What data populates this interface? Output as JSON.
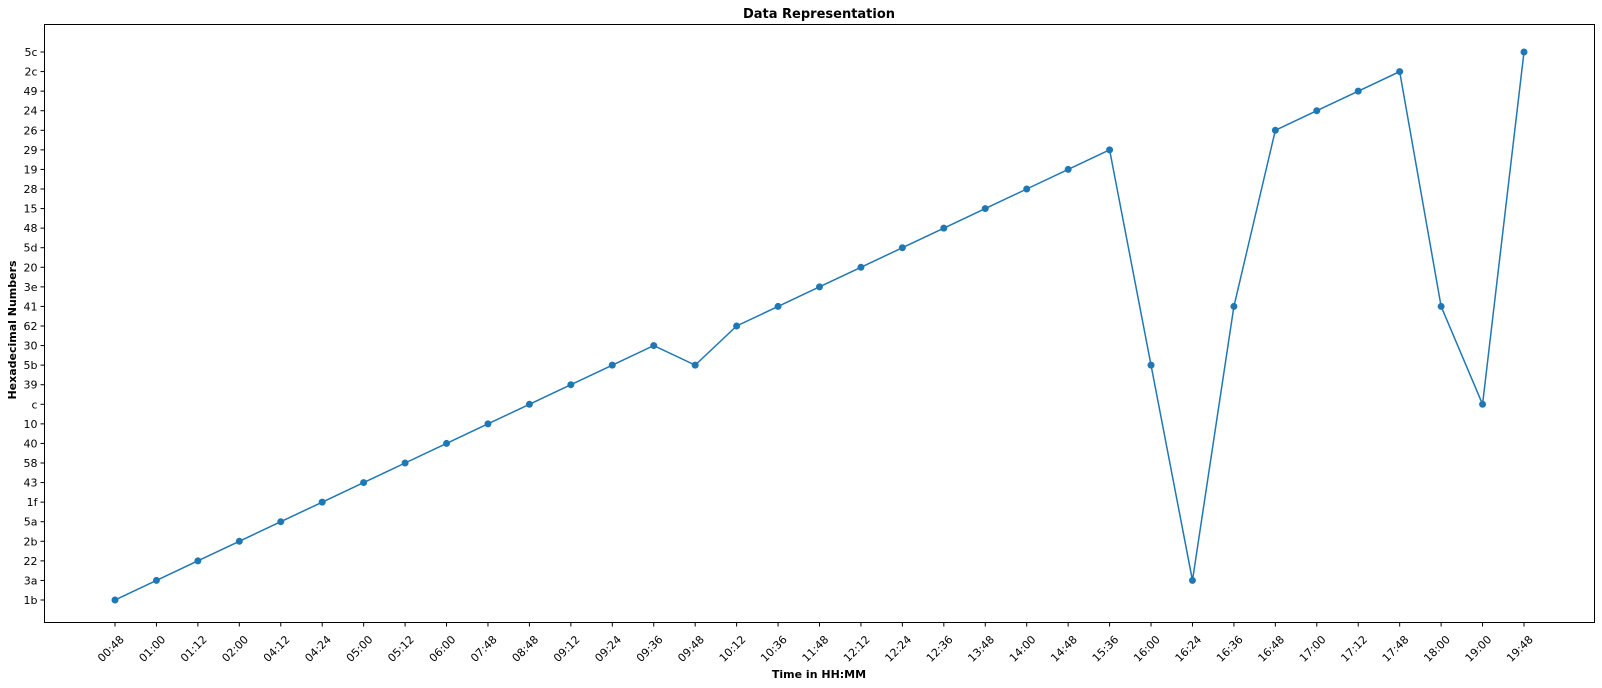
{
  "chart_data": {
    "type": "line",
    "title": "Data Representation",
    "xlabel": "Time in HH:MM",
    "ylabel": "Hexadecimal Numbers",
    "grid": false,
    "marker": "circle",
    "color": "#1f77b4",
    "y_categories": [
      "1b",
      "3a",
      "22",
      "2b",
      "5a",
      "1f",
      "43",
      "58",
      "40",
      "10",
      "c",
      "39",
      "5b",
      "30",
      "62",
      "41",
      "3e",
      "20",
      "5d",
      "48",
      "15",
      "28",
      "19",
      "29",
      "26",
      "24",
      "49",
      "2c",
      "5c"
    ],
    "x": [
      "00:48",
      "01:00",
      "01:12",
      "02:00",
      "04:12",
      "04:24",
      "05:00",
      "05:12",
      "06:00",
      "07:48",
      "08:48",
      "09:12",
      "09:24",
      "09:36",
      "09:48",
      "10:12",
      "10:36",
      "11:48",
      "12:12",
      "12:24",
      "12:36",
      "13:48",
      "14:00",
      "14:48",
      "15:36",
      "16:00",
      "16:24",
      "16:36",
      "16:48",
      "17:00",
      "17:12",
      "17:48",
      "18:00",
      "19:00",
      "19:48"
    ],
    "series": [
      {
        "values": [
          "1b",
          "3a",
          "22",
          "2b",
          "5a",
          "1f",
          "43",
          "58",
          "40",
          "10",
          "c",
          "39",
          "5b",
          "30",
          "5b",
          "62",
          "41",
          "3e",
          "20",
          "5d",
          "48",
          "15",
          "28",
          "19",
          "29",
          "5b",
          "3a",
          "41",
          "26",
          "24",
          "49",
          "2c",
          "41",
          "c",
          "5c"
        ]
      }
    ]
  }
}
